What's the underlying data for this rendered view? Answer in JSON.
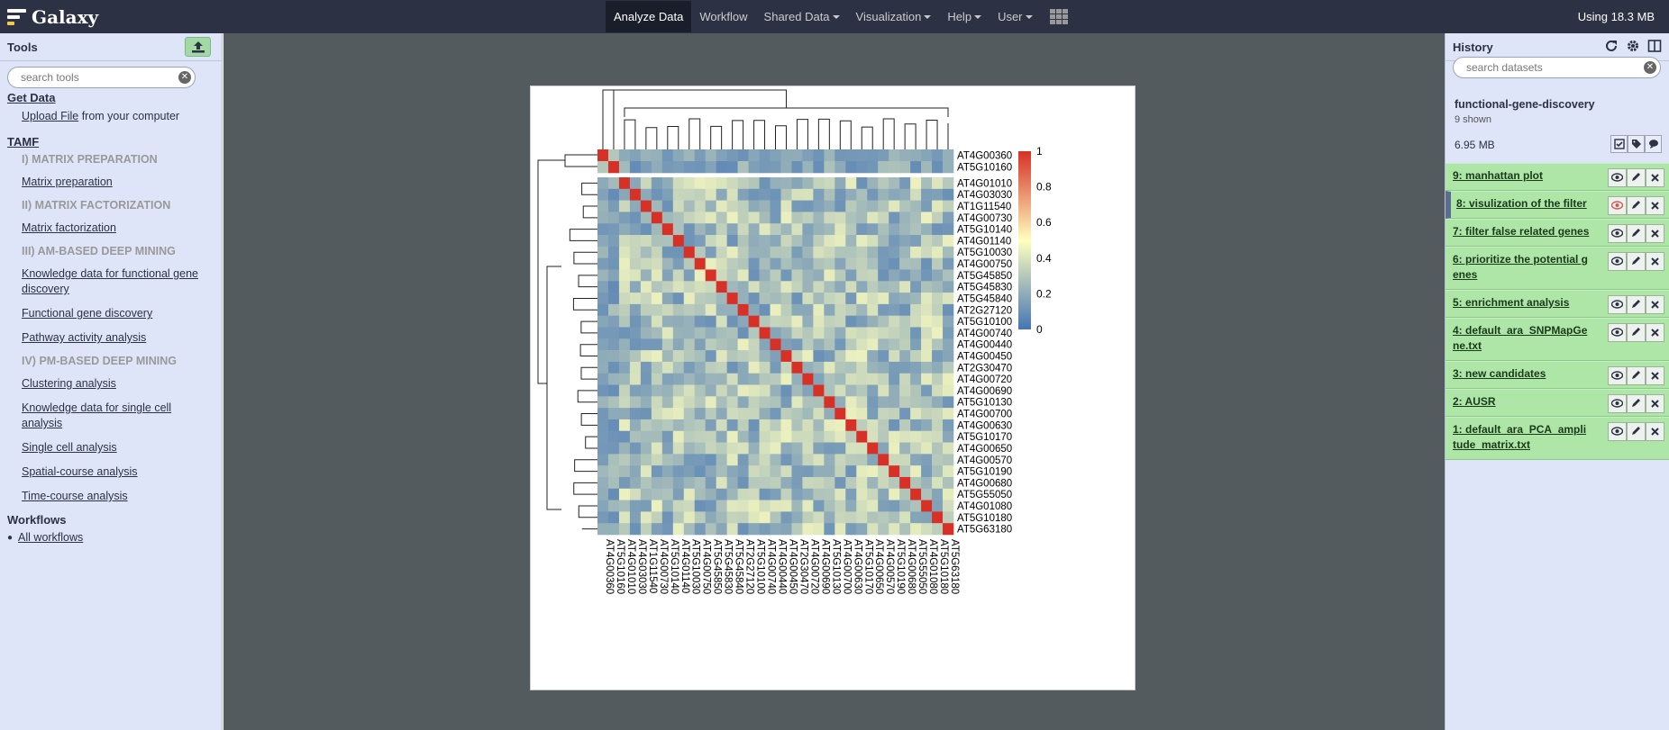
{
  "masthead": {
    "brand": "Galaxy",
    "nav": [
      {
        "label": "Analyze Data",
        "active": true,
        "dropdown": false
      },
      {
        "label": "Workflow",
        "active": false,
        "dropdown": false
      },
      {
        "label": "Shared Data",
        "active": false,
        "dropdown": true
      },
      {
        "label": "Visualization",
        "active": false,
        "dropdown": true
      },
      {
        "label": "Help",
        "active": false,
        "dropdown": true
      },
      {
        "label": "User",
        "active": false,
        "dropdown": true
      }
    ],
    "quota": "Using 18.3 MB"
  },
  "tools": {
    "title": "Tools",
    "search_placeholder": "search tools",
    "get_data": "Get Data",
    "upload_link": "Upload File",
    "upload_suffix": " from your computer",
    "tamf": "TAMF",
    "items": [
      {
        "kind": "label",
        "text": "I) MATRIX PREPARATION"
      },
      {
        "kind": "tool",
        "text": "Matrix preparation"
      },
      {
        "kind": "label",
        "text": "II) MATRIX FACTORIZATION"
      },
      {
        "kind": "tool",
        "text": "Matrix factorization"
      },
      {
        "kind": "label",
        "text": "III) AM-BASED DEEP MINING"
      },
      {
        "kind": "tool",
        "text": "Knowledge data for functional gene discovery"
      },
      {
        "kind": "tool",
        "text": "Functional gene discovery"
      },
      {
        "kind": "tool",
        "text": "Pathway activity analysis"
      },
      {
        "kind": "label",
        "text": "IV) PM-BASED DEEP MINING"
      },
      {
        "kind": "tool",
        "text": "Clustering analysis"
      },
      {
        "kind": "tool",
        "text": "Knowledge data for single cell analysis"
      },
      {
        "kind": "tool",
        "text": "Single cell analysis"
      },
      {
        "kind": "tool",
        "text": "Spatial-course analysis"
      },
      {
        "kind": "tool",
        "text": "Time-course analysis"
      }
    ],
    "workflows_title": "Workflows",
    "all_workflows": "All workflows"
  },
  "history": {
    "title": "History",
    "search_placeholder": "search datasets",
    "name": "functional-gene-discovery",
    "shown": "9 shown",
    "size": "6.95 MB",
    "datasets": [
      {
        "label": "9: manhattan plot",
        "selected": false
      },
      {
        "label": "8: visulization of the filter",
        "selected": true
      },
      {
        "label": "7: filter false related genes",
        "selected": false
      },
      {
        "label": "6: prioritize the potential genes",
        "selected": false
      },
      {
        "label": "5: enrichment analysis",
        "selected": false
      },
      {
        "label": "4: default_ara_SNPMapGene.txt",
        "selected": false
      },
      {
        "label": "3: new candidates",
        "selected": false
      },
      {
        "label": "2: AUSR",
        "selected": false
      },
      {
        "label": "1: default_ara_PCA_amplitude_matrix.txt",
        "selected": false
      }
    ]
  },
  "chart_data": {
    "type": "heatmap",
    "title": "",
    "xlabel": "",
    "ylabel": "",
    "row_labels": [
      "AT4G00360",
      "AT5G10160",
      "AT4G01010",
      "AT4G03030",
      "AT1G11540",
      "AT4G00730",
      "AT5G10140",
      "AT4G01140",
      "AT5G10030",
      "AT4G00750",
      "AT5G45850",
      "AT5G45830",
      "AT5G45840",
      "AT2G27120",
      "AT5G10100",
      "AT4G00740",
      "AT4G00440",
      "AT4G00450",
      "AT2G30470",
      "AT4G00720",
      "AT4G00690",
      "AT5G10130",
      "AT4G00700",
      "AT4G00630",
      "AT5G10170",
      "AT4G00650",
      "AT4G00570",
      "AT5G10190",
      "AT4G00680",
      "AT5G55050",
      "AT4G01080",
      "AT5G10180",
      "AT5G63180"
    ],
    "col_labels": [
      "AT4G00360",
      "AT5G10160",
      "AT4G01010",
      "AT4G03030",
      "AT1G11540",
      "AT4G00730",
      "AT5G10140",
      "AT4G01140",
      "AT5G10030",
      "AT4G00750",
      "AT5G45850",
      "AT5G45830",
      "AT5G45840",
      "AT2G27120",
      "AT5G10100",
      "AT4G00740",
      "AT4G00440",
      "AT4G00450",
      "AT2G30470",
      "AT4G00720",
      "AT4G00690",
      "AT5G10130",
      "AT4G00700",
      "AT4G00630",
      "AT5G10170",
      "AT4G00650",
      "AT4G00570",
      "AT5G10190",
      "AT4G00680",
      "AT5G55050",
      "AT4G01080",
      "AT5G10180",
      "AT5G63180"
    ],
    "diagonal_value": 1,
    "typical_off_diagonal_range": [
      0.1,
      0.45
    ],
    "colorbar": {
      "ticks": [
        "0",
        "0.2",
        "0.4",
        "0.6",
        "0.8",
        "1"
      ],
      "range": [
        0,
        1
      ],
      "colors": [
        "#4575b4",
        "#ffffbf",
        "#d73027"
      ]
    },
    "dendrograms": [
      "top",
      "left"
    ]
  }
}
